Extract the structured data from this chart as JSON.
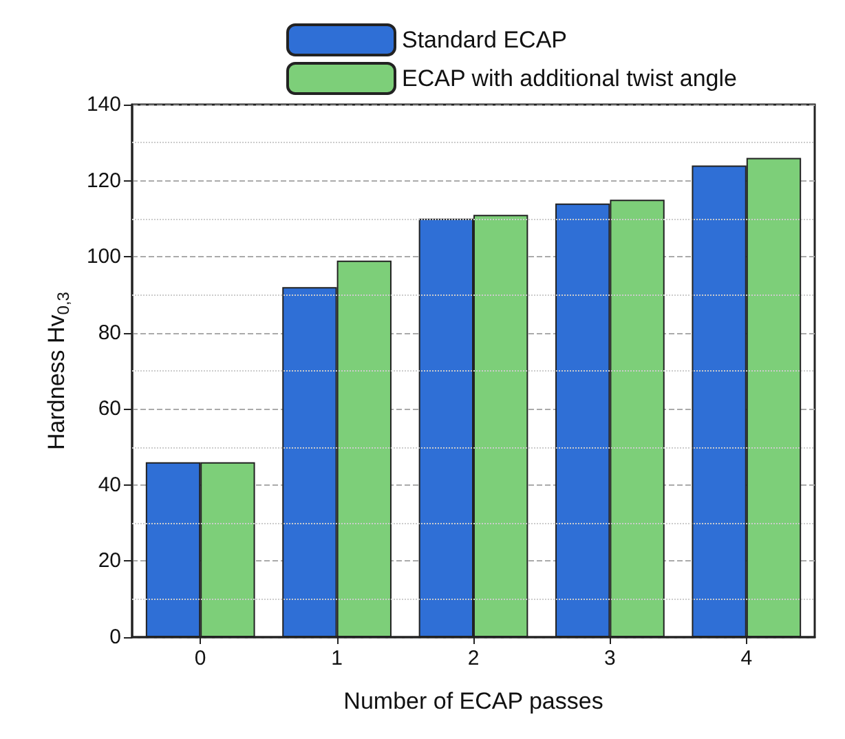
{
  "chart_data": {
    "type": "bar",
    "xlabel": "Number of ECAP passes",
    "ylabel": "Hardness Hv$_{0,3}$",
    "categories": [
      "0",
      "1",
      "2",
      "3",
      "4"
    ],
    "series": [
      {
        "name": "Standard ECAP",
        "color": "#2f6fd6",
        "values": [
          46,
          92,
          110,
          114,
          124
        ]
      },
      {
        "name": "ECAP with additional twist angle",
        "color": "#7dcf79",
        "values": [
          46,
          99,
          111,
          115,
          126
        ]
      }
    ],
    "ylim": [
      0,
      140
    ],
    "yticks": [
      0,
      20,
      40,
      60,
      80,
      100,
      120,
      140
    ],
    "grid": "y",
    "legend": "top"
  }
}
